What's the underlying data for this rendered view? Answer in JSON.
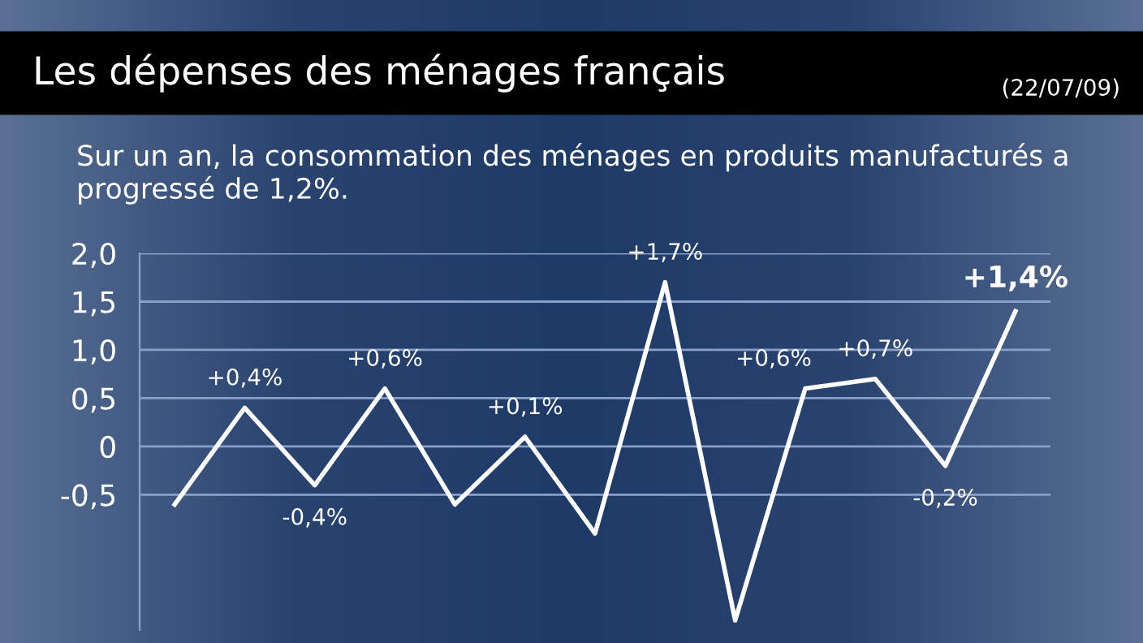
{
  "chart_data": {
    "type": "line",
    "title": "Les dépenses des ménages français",
    "subtitle": "Sur un an, la consommation des ménages en produits manufacturés a progressé de 1,2%.",
    "annotations": [
      "(22/07/09)"
    ],
    "categories": [
      null,
      null,
      null,
      null,
      null,
      null,
      null,
      null,
      null,
      null,
      null,
      null,
      null
    ],
    "series": [
      {
        "color": "#ffffff",
        "values": [
          -0.6,
          0.4,
          -0.4,
          0.6,
          -0.6,
          0.1,
          -0.9,
          1.7,
          -1.8,
          0.6,
          0.7,
          -0.2,
          1.4
        ],
        "value_labels": [
          null,
          "+0,4%",
          "-0,4%",
          "+0,6%",
          null,
          "+0,1%",
          null,
          "+1,7%",
          null,
          "+0,6%",
          "+0,7%",
          "-0,2%",
          "+1,4%"
        ]
      }
    ],
    "ylim": [
      -1.9,
      2.0
    ],
    "yticks": [
      {
        "value": -0.5,
        "label": "-0,5"
      },
      {
        "value": 0,
        "label": "0"
      },
      {
        "value": 0.5,
        "label": "0,5"
      },
      {
        "value": 1.0,
        "label": "1,0"
      },
      {
        "value": 1.5,
        "label": "1,5"
      },
      {
        "value": 2.0,
        "label": "2,0"
      }
    ],
    "grid": "y",
    "marker": "none",
    "line_style": "solid",
    "legend": false
  }
}
